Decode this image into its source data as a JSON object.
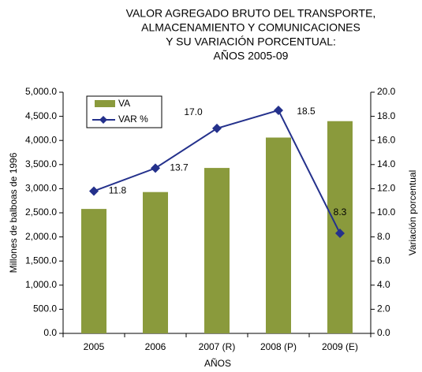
{
  "chart_data": {
    "type": "bar_line",
    "title": [
      "VALOR AGREGADO BRUTO DEL TRANSPORTE,",
      "ALMACENAMIENTO Y COMUNICACIONES",
      "Y SU VARIACIÓN PORCENTUAL:",
      "AÑOS 2005-09"
    ],
    "xlabel": "AÑOS",
    "ylabel": "Millones de balboas de 1996",
    "y2label": "Variación porcentual",
    "categories": [
      "2005",
      "2006",
      "2007 (R)",
      "2008 (P)",
      "2009 (E)"
    ],
    "series": [
      {
        "name": "VA",
        "color": "#8a9a3c",
        "type": "bar",
        "values": [
          2580,
          2930,
          3430,
          4060,
          4400
        ]
      },
      {
        "name": "VAR %",
        "color": "#24318c",
        "type": "line",
        "axis": "y2",
        "values": [
          11.8,
          13.7,
          17.0,
          18.5,
          8.3
        ],
        "value_labels": [
          "11.8",
          "13.7",
          "17.0",
          "18.5",
          "8.3"
        ]
      }
    ],
    "ylim": [
      0,
      5000
    ],
    "yticks": [
      {
        "value": 0,
        "label": "0.0"
      },
      {
        "value": 500,
        "label": "500.0"
      },
      {
        "value": 1000,
        "label": "1,000.0"
      },
      {
        "value": 1500,
        "label": "1,500.0"
      },
      {
        "value": 2000,
        "label": "2,000.0"
      },
      {
        "value": 2500,
        "label": "2,500.0"
      },
      {
        "value": 3000,
        "label": "3,000.0"
      },
      {
        "value": 3500,
        "label": "3,500.0"
      },
      {
        "value": 4000,
        "label": "4,000.0"
      },
      {
        "value": 4500,
        "label": "4,500.0"
      },
      {
        "value": 5000,
        "label": "5,000.0"
      }
    ],
    "y2lim": [
      0,
      20
    ],
    "y2ticks": [
      {
        "value": 0,
        "label": "0.0"
      },
      {
        "value": 2,
        "label": "2.0"
      },
      {
        "value": 4,
        "label": "4.0"
      },
      {
        "value": 6,
        "label": "6.0"
      },
      {
        "value": 8,
        "label": "8.0"
      },
      {
        "value": 10,
        "label": "10.0"
      },
      {
        "value": 12,
        "label": "12.0"
      },
      {
        "value": 14,
        "label": "14.0"
      },
      {
        "value": 16,
        "label": "16.0"
      },
      {
        "value": 18,
        "label": "18.0"
      },
      {
        "value": 20,
        "label": "20.0"
      }
    ],
    "legend": "upper left"
  }
}
